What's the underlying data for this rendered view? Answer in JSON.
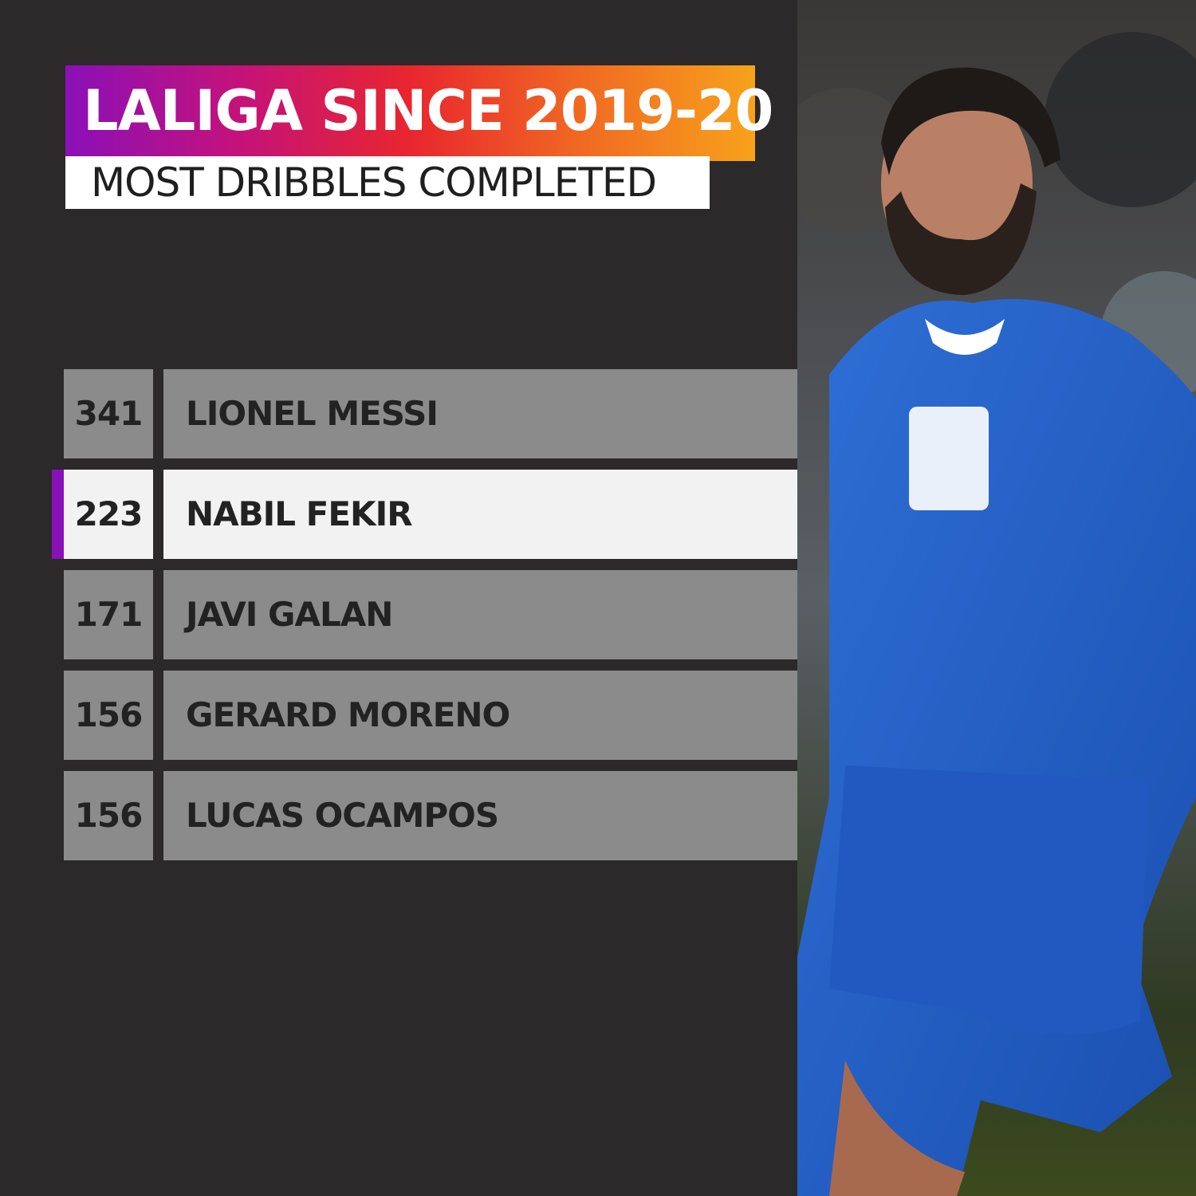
{
  "header": {
    "title": "LALIGA SINCE 2019-20",
    "subtitle": "MOST DRIBBLES COMPLETED"
  },
  "table": {
    "rows": [
      {
        "value": 341,
        "name": "LIONEL MESSI"
      },
      {
        "value": 223,
        "name": "NABIL FEKIR"
      },
      {
        "value": 171,
        "name": "JAVI GALAN"
      },
      {
        "value": 156,
        "name": "GERARD MORENO"
      },
      {
        "value": 156,
        "name": "LUCAS OCAMPOS"
      }
    ]
  }
}
